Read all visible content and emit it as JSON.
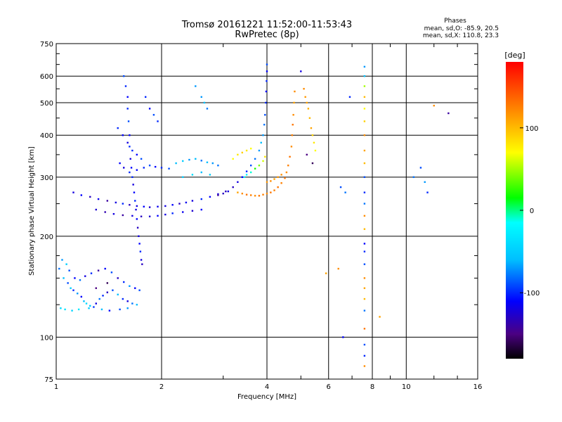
{
  "title": {
    "line1": "Tromsø 20161221 11:52:00-11:53:43",
    "line2": "RwPretec (8p)"
  },
  "stats": {
    "heading": "Phases",
    "line1": "mean, sd,O: -85.9, 20.5",
    "line2": "mean, sd,X: 110.8, 23.3"
  },
  "colorbar": {
    "unit_label": "[deg]",
    "ticks": [
      {
        "label": "100",
        "value": 100
      },
      {
        "label": "0",
        "value": 0
      },
      {
        "label": "-100",
        "value": -100
      }
    ],
    "range": [
      -180,
      180
    ],
    "stops": [
      {
        "value": -180,
        "color": "#000000"
      },
      {
        "value": -150,
        "color": "#4b0082"
      },
      {
        "value": -110,
        "color": "#0000ff"
      },
      {
        "value": -60,
        "color": "#00bfff"
      },
      {
        "value": -15,
        "color": "#00ffff"
      },
      {
        "value": 15,
        "color": "#00ff00"
      },
      {
        "value": 70,
        "color": "#ffff00"
      },
      {
        "value": 120,
        "color": "#ff8c00"
      },
      {
        "value": 180,
        "color": "#ff0000"
      }
    ]
  },
  "chart_data": {
    "type": "scatter",
    "xlabel": "Frequency [MHz]",
    "ylabel": "Stationary phase Virtual Height [km]",
    "xscale": "log2",
    "yscale": "log",
    "xlim": [
      1,
      16
    ],
    "ylim": [
      75,
      750
    ],
    "x_ticks": [
      {
        "value": 1,
        "label": "1"
      },
      {
        "value": 2,
        "label": "2"
      },
      {
        "value": 4,
        "label": "4"
      },
      {
        "value": 6,
        "label": "6"
      },
      {
        "value": 8,
        "label": "8"
      },
      {
        "value": 10,
        "label": "10"
      },
      {
        "value": 16,
        "label": "16"
      }
    ],
    "x_gridlines": [
      2,
      4,
      6,
      8,
      10
    ],
    "x_minor_ticks": [
      3,
      5,
      7,
      9,
      12,
      14
    ],
    "y_ticks": [
      {
        "value": 75,
        "label": "75"
      },
      {
        "value": 100,
        "label": "100"
      },
      {
        "value": 200,
        "label": "200"
      },
      {
        "value": 300,
        "label": "300"
      },
      {
        "value": 400,
        "label": "400"
      },
      {
        "value": 500,
        "label": "500"
      },
      {
        "value": 600,
        "label": "600"
      },
      {
        "value": 750,
        "label": "750"
      }
    ],
    "y_gridlines": [
      100,
      200,
      300,
      400,
      500,
      600
    ],
    "y_minor_ticks": [
      125,
      150,
      175,
      250,
      350,
      450,
      550,
      650,
      700
    ],
    "grid": true,
    "points": [
      [
        1.02,
        160,
        -80
      ],
      [
        1.05,
        150,
        -60
      ],
      [
        1.08,
        145,
        -90
      ],
      [
        1.1,
        140,
        -50
      ],
      [
        1.12,
        138,
        -100
      ],
      [
        1.15,
        135,
        -70
      ],
      [
        1.18,
        132,
        -110
      ],
      [
        1.2,
        128,
        -60
      ],
      [
        1.22,
        126,
        -40
      ],
      [
        1.25,
        124,
        -55
      ],
      [
        1.28,
        123,
        -95
      ],
      [
        1.3,
        126,
        -120
      ],
      [
        1.33,
        130,
        -80
      ],
      [
        1.36,
        133,
        -100
      ],
      [
        1.4,
        136,
        -130
      ],
      [
        1.45,
        138,
        -90
      ],
      [
        1.5,
        134,
        -60
      ],
      [
        1.55,
        130,
        -100
      ],
      [
        1.6,
        128,
        -120
      ],
      [
        1.65,
        126,
        -80
      ],
      [
        1.7,
        125,
        -60
      ],
      [
        1.04,
        170,
        -70
      ],
      [
        1.07,
        165,
        -50
      ],
      [
        1.09,
        158,
        -90
      ],
      [
        1.13,
        150,
        -110
      ],
      [
        1.17,
        148,
        -80
      ],
      [
        1.21,
        152,
        -120
      ],
      [
        1.26,
        155,
        -100
      ],
      [
        1.32,
        158,
        -140
      ],
      [
        1.38,
        160,
        -110
      ],
      [
        1.44,
        156,
        -90
      ],
      [
        1.5,
        150,
        -130
      ],
      [
        1.56,
        146,
        -100
      ],
      [
        1.62,
        142,
        -70
      ],
      [
        1.68,
        140,
        -110
      ],
      [
        1.73,
        138,
        -90
      ],
      [
        1.03,
        122,
        -40
      ],
      [
        1.06,
        121,
        -35
      ],
      [
        1.11,
        120,
        -45
      ],
      [
        1.16,
        121,
        -30
      ],
      [
        1.24,
        122,
        -50
      ],
      [
        1.35,
        121,
        -60
      ],
      [
        1.42,
        120,
        -110
      ],
      [
        1.52,
        121,
        -90
      ],
      [
        1.6,
        122,
        -70
      ],
      [
        1.12,
        270,
        -120
      ],
      [
        1.18,
        265,
        -110
      ],
      [
        1.25,
        262,
        -130
      ],
      [
        1.32,
        258,
        -115
      ],
      [
        1.4,
        255,
        -140
      ],
      [
        1.48,
        252,
        -120
      ],
      [
        1.55,
        250,
        -100
      ],
      [
        1.62,
        248,
        -130
      ],
      [
        1.7,
        246,
        -120
      ],
      [
        1.78,
        245,
        -110
      ],
      [
        1.85,
        244,
        -125
      ],
      [
        1.95,
        245,
        -115
      ],
      [
        2.05,
        246,
        -120
      ],
      [
        2.15,
        248,
        -110
      ],
      [
        2.25,
        250,
        -130
      ],
      [
        2.35,
        252,
        -115
      ],
      [
        2.45,
        255,
        -120
      ],
      [
        2.6,
        258,
        -100
      ],
      [
        2.75,
        262,
        -110
      ],
      [
        2.9,
        267,
        -120
      ],
      [
        3.05,
        272,
        -130
      ],
      [
        1.3,
        240,
        -125
      ],
      [
        1.38,
        236,
        -135
      ],
      [
        1.46,
        233,
        -120
      ],
      [
        1.55,
        231,
        -140
      ],
      [
        1.65,
        230,
        -120
      ],
      [
        1.75,
        229,
        -130
      ],
      [
        1.85,
        229,
        -125
      ],
      [
        1.95,
        230,
        -110
      ],
      [
        2.05,
        232,
        -120
      ],
      [
        2.15,
        234,
        -100
      ],
      [
        2.3,
        236,
        -115
      ],
      [
        2.45,
        238,
        -125
      ],
      [
        2.6,
        240,
        -110
      ],
      [
        1.56,
        600,
        -90
      ],
      [
        1.58,
        560,
        -100
      ],
      [
        1.6,
        520,
        -110
      ],
      [
        1.6,
        480,
        -100
      ],
      [
        1.61,
        440,
        -90
      ],
      [
        1.62,
        400,
        -110
      ],
      [
        1.62,
        370,
        -100
      ],
      [
        1.63,
        340,
        -120
      ],
      [
        1.64,
        320,
        -110
      ],
      [
        1.65,
        300,
        -100
      ],
      [
        1.66,
        285,
        -120
      ],
      [
        1.67,
        270,
        -110
      ],
      [
        1.68,
        255,
        -100
      ],
      [
        1.69,
        240,
        -120
      ],
      [
        1.7,
        225,
        -110
      ],
      [
        1.71,
        212,
        -130
      ],
      [
        1.72,
        200,
        -120
      ],
      [
        1.73,
        190,
        -110
      ],
      [
        1.74,
        180,
        -100
      ],
      [
        1.75,
        170,
        -120
      ],
      [
        1.76,
        165,
        -130
      ],
      [
        1.52,
        330,
        -110
      ],
      [
        1.56,
        320,
        -120
      ],
      [
        1.62,
        310,
        -100
      ],
      [
        1.7,
        315,
        -110
      ],
      [
        1.78,
        320,
        -100
      ],
      [
        1.85,
        325,
        -90
      ],
      [
        1.92,
        322,
        -110
      ],
      [
        2.0,
        320,
        -100
      ],
      [
        2.1,
        318,
        -90
      ],
      [
        1.5,
        420,
        -100
      ],
      [
        1.55,
        400,
        -110
      ],
      [
        1.6,
        380,
        -120
      ],
      [
        1.65,
        360,
        -100
      ],
      [
        1.7,
        350,
        -110
      ],
      [
        1.75,
        340,
        -90
      ],
      [
        1.8,
        520,
        -100
      ],
      [
        1.85,
        480,
        -110
      ],
      [
        1.9,
        460,
        -90
      ],
      [
        1.95,
        440,
        -100
      ],
      [
        2.2,
        330,
        -60
      ],
      [
        2.3,
        335,
        -50
      ],
      [
        2.4,
        338,
        -70
      ],
      [
        2.5,
        340,
        -60
      ],
      [
        2.6,
        336,
        -80
      ],
      [
        2.7,
        332,
        -60
      ],
      [
        2.8,
        330,
        -70
      ],
      [
        2.9,
        325,
        -80
      ],
      [
        2.3,
        300,
        -50
      ],
      [
        2.45,
        305,
        -40
      ],
      [
        2.6,
        310,
        -60
      ],
      [
        2.75,
        305,
        -50
      ],
      [
        2.6,
        520,
        -70
      ],
      [
        2.65,
        500,
        -60
      ],
      [
        2.7,
        480,
        -80
      ],
      [
        2.5,
        560,
        -70
      ],
      [
        2.9,
        265,
        -140
      ],
      [
        3.0,
        268,
        -130
      ],
      [
        3.1,
        272,
        -120
      ],
      [
        3.2,
        280,
        -130
      ],
      [
        3.3,
        290,
        -120
      ],
      [
        3.4,
        300,
        -110
      ],
      [
        3.5,
        312,
        -100
      ],
      [
        3.6,
        325,
        -90
      ],
      [
        3.7,
        340,
        -80
      ],
      [
        3.8,
        360,
        -70
      ],
      [
        3.85,
        380,
        -60
      ],
      [
        3.9,
        400,
        -70
      ],
      [
        3.93,
        430,
        -80
      ],
      [
        3.95,
        460,
        -90
      ],
      [
        3.97,
        500,
        -100
      ],
      [
        3.98,
        540,
        -110
      ],
      [
        3.99,
        580,
        -100
      ],
      [
        4.0,
        620,
        -110
      ],
      [
        4.0,
        650,
        -90
      ],
      [
        3.45,
        300,
        -30
      ],
      [
        3.5,
        305,
        -20
      ],
      [
        3.6,
        310,
        -10
      ],
      [
        3.7,
        318,
        20
      ],
      [
        3.8,
        325,
        40
      ],
      [
        3.9,
        335,
        60
      ],
      [
        3.95,
        345,
        80
      ],
      [
        3.2,
        340,
        70
      ],
      [
        3.3,
        350,
        80
      ],
      [
        3.4,
        355,
        90
      ],
      [
        3.5,
        360,
        80
      ],
      [
        3.6,
        365,
        70
      ],
      [
        3.3,
        270,
        110
      ],
      [
        3.4,
        268,
        120
      ],
      [
        3.5,
        266,
        130
      ],
      [
        3.6,
        265,
        125
      ],
      [
        3.7,
        264,
        120
      ],
      [
        3.8,
        264,
        130
      ],
      [
        3.9,
        266,
        125
      ],
      [
        4.0,
        268,
        120
      ],
      [
        4.1,
        270,
        130
      ],
      [
        4.2,
        274,
        125
      ],
      [
        4.3,
        280,
        130
      ],
      [
        4.4,
        288,
        125
      ],
      [
        4.5,
        298,
        130
      ],
      [
        4.55,
        310,
        120
      ],
      [
        4.6,
        325,
        125
      ],
      [
        4.65,
        345,
        130
      ],
      [
        4.7,
        370,
        120
      ],
      [
        4.72,
        400,
        125
      ],
      [
        4.74,
        430,
        130
      ],
      [
        4.76,
        460,
        120
      ],
      [
        4.78,
        500,
        110
      ],
      [
        4.8,
        540,
        120
      ],
      [
        4.0,
        290,
        115
      ],
      [
        4.1,
        292,
        120
      ],
      [
        4.2,
        296,
        110
      ],
      [
        4.3,
        300,
        115
      ],
      [
        4.4,
        305,
        120
      ],
      [
        5.1,
        550,
        120
      ],
      [
        5.15,
        520,
        115
      ],
      [
        5.2,
        500,
        110
      ],
      [
        5.25,
        480,
        105
      ],
      [
        5.3,
        450,
        100
      ],
      [
        5.35,
        420,
        110
      ],
      [
        5.4,
        400,
        90
      ],
      [
        5.45,
        380,
        80
      ],
      [
        5.5,
        360,
        70
      ],
      [
        5.0,
        620,
        -120
      ],
      [
        5.2,
        350,
        -150
      ],
      [
        5.4,
        330,
        -160
      ],
      [
        6.5,
        280,
        -90
      ],
      [
        6.7,
        270,
        -80
      ],
      [
        6.9,
        520,
        -100
      ],
      [
        7.6,
        640,
        -70
      ],
      [
        7.6,
        600,
        -60
      ],
      [
        7.6,
        560,
        50
      ],
      [
        7.6,
        520,
        100
      ],
      [
        7.6,
        480,
        70
      ],
      [
        7.6,
        440,
        90
      ],
      [
        7.6,
        400,
        120
      ],
      [
        7.6,
        360,
        110
      ],
      [
        7.6,
        330,
        100
      ],
      [
        7.6,
        300,
        -90
      ],
      [
        7.6,
        270,
        -100
      ],
      [
        7.6,
        250,
        -80
      ],
      [
        7.6,
        230,
        120
      ],
      [
        7.6,
        210,
        100
      ],
      [
        7.6,
        190,
        -110
      ],
      [
        7.6,
        180,
        -100
      ],
      [
        7.6,
        165,
        -90
      ],
      [
        7.6,
        150,
        120
      ],
      [
        7.6,
        140,
        110
      ],
      [
        7.6,
        130,
        100
      ],
      [
        7.6,
        120,
        -80
      ],
      [
        7.6,
        106,
        130
      ],
      [
        7.6,
        95,
        -90
      ],
      [
        7.6,
        88,
        -100
      ],
      [
        7.6,
        82,
        120
      ],
      [
        8.4,
        115,
        110
      ],
      [
        10.5,
        300,
        -80
      ],
      [
        11.0,
        320,
        -90
      ],
      [
        11.3,
        290,
        -70
      ],
      [
        11.5,
        270,
        -100
      ],
      [
        12.0,
        490,
        120
      ],
      [
        13.2,
        465,
        -140
      ],
      [
        5.9,
        155,
        110
      ],
      [
        6.4,
        160,
        120
      ],
      [
        6.6,
        100,
        -110
      ],
      [
        1.3,
        140,
        -150
      ],
      [
        1.4,
        145,
        -160
      ]
    ]
  }
}
